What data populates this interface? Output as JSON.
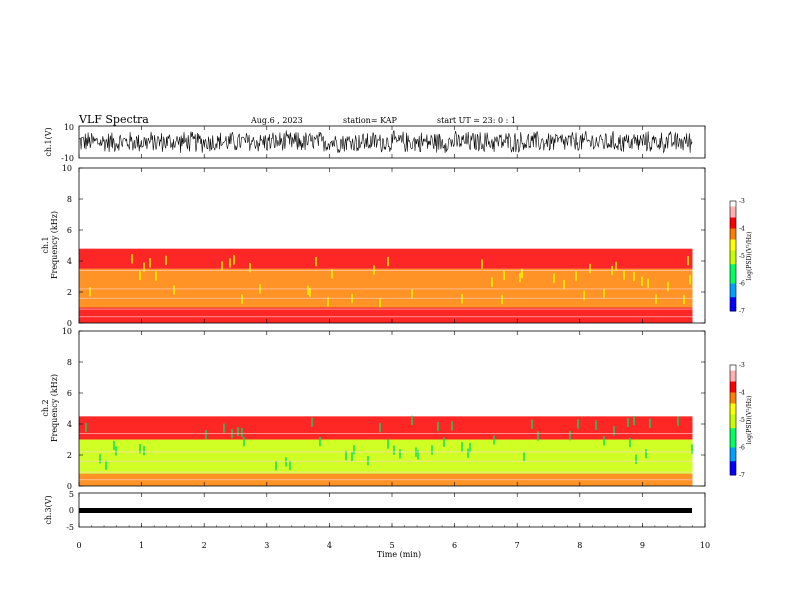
{
  "header": {
    "title": "VLF Spectra",
    "date": "Aug.6 , 2023",
    "station": "station= KAP",
    "start": "start UT = 23: 0 : 1"
  },
  "chart_data": [
    {
      "type": "line",
      "name": "ch1-waveform",
      "ylabel": "ch.1(V)",
      "ylim": [
        -10,
        10
      ],
      "y_ticks": [
        "10",
        "-10"
      ],
      "xlim": [
        0,
        10
      ],
      "description_values": {
        "approx_range_V": [
          -8,
          8
        ]
      }
    },
    {
      "type": "heatmap",
      "name": "ch1-spectrogram",
      "ylabel_top": "ch.1",
      "ylabel": "Frequency (kHz)",
      "ylim": [
        0,
        10
      ],
      "y_ticks": [
        "0",
        "2",
        "4",
        "6",
        "8",
        "10"
      ],
      "xlim": [
        0,
        9.8
      ],
      "colorbar": {
        "label": "log(PSD)(V²/Hz)",
        "range": [
          -7,
          -3
        ],
        "ticks": [
          "-3",
          "-4",
          "-5",
          "-6",
          "-7"
        ]
      },
      "bands": [
        {
          "freq_range_kHz": [
            0,
            1
          ],
          "log_psd": -3.8
        },
        {
          "freq_range_kHz": [
            1,
            3.5
          ],
          "log_psd": -4.3
        },
        {
          "freq_range_kHz": [
            3.5,
            4.8
          ],
          "log_psd": -3.9
        },
        {
          "freq_range_kHz": [
            4.8,
            10
          ],
          "log_psd": -3.1
        }
      ]
    },
    {
      "type": "heatmap",
      "name": "ch2-spectrogram",
      "ylabel_top": "ch.2",
      "ylabel": "Frequency (kHz)",
      "ylim": [
        0,
        10
      ],
      "y_ticks": [
        "0",
        "2",
        "4",
        "6",
        "8",
        "10"
      ],
      "xlim": [
        0,
        9.8
      ],
      "colorbar": {
        "label": "log(PSD)(V²/Hz)",
        "range": [
          -7,
          -3
        ],
        "ticks": [
          "-3",
          "-4",
          "-5",
          "-6",
          "-7"
        ]
      },
      "bands": [
        {
          "freq_range_kHz": [
            0,
            0.8
          ],
          "log_psd": -4.2
        },
        {
          "freq_range_kHz": [
            0.8,
            3.0
          ],
          "log_psd": -4.9
        },
        {
          "freq_range_kHz": [
            3.0,
            4.5
          ],
          "log_psd": -3.9
        },
        {
          "freq_range_kHz": [
            4.5,
            10
          ],
          "log_psd": -3.1
        }
      ]
    },
    {
      "type": "line",
      "name": "ch3-waveform",
      "ylabel": "ch.3(V)",
      "ylim": [
        -5,
        5
      ],
      "y_ticks": [
        "5",
        "0",
        "-5"
      ],
      "xlim": [
        0,
        10
      ],
      "description_values": {
        "approx_level_V": -1
      }
    }
  ],
  "x_axis": {
    "label": "Time (min)",
    "ticks": [
      "0",
      "1",
      "2",
      "3",
      "4",
      "5",
      "6",
      "7",
      "8",
      "9",
      "10"
    ]
  },
  "colors": {
    "colormap": [
      "#000080",
      "#0000ff",
      "#00a0ff",
      "#00ff60",
      "#c8ff00",
      "#ffff00",
      "#ff8000",
      "#ff0000",
      "#ffc8c8",
      "#ffffff"
    ]
  }
}
